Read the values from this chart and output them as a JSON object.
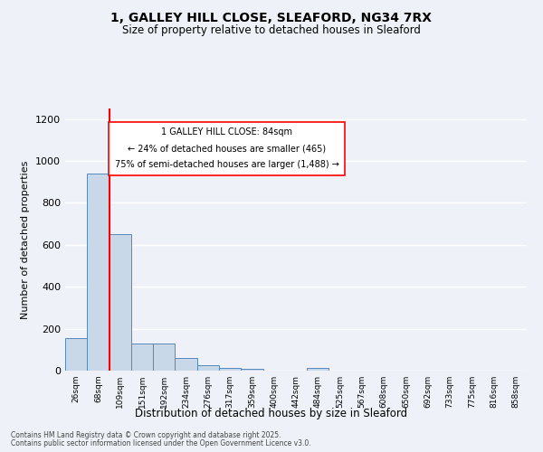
{
  "title_line1": "1, GALLEY HILL CLOSE, SLEAFORD, NG34 7RX",
  "title_line2": "Size of property relative to detached houses in Sleaford",
  "xlabel": "Distribution of detached houses by size in Sleaford",
  "ylabel": "Number of detached properties",
  "bin_labels": [
    "26sqm",
    "68sqm",
    "109sqm",
    "151sqm",
    "192sqm",
    "234sqm",
    "276sqm",
    "317sqm",
    "359sqm",
    "400sqm",
    "442sqm",
    "484sqm",
    "525sqm",
    "567sqm",
    "608sqm",
    "650sqm",
    "692sqm",
    "733sqm",
    "775sqm",
    "816sqm",
    "858sqm"
  ],
  "bar_heights": [
    155,
    940,
    650,
    130,
    130,
    60,
    25,
    15,
    10,
    0,
    0,
    15,
    0,
    0,
    0,
    0,
    0,
    0,
    0,
    0,
    0
  ],
  "bar_color": "#c8d8e8",
  "bar_edge_color": "#5588bb",
  "red_line_x": 1.5,
  "annotation_title": "1 GALLEY HILL CLOSE: 84sqm",
  "annotation_line2": "← 24% of detached houses are smaller (465)",
  "annotation_line3": "75% of semi-detached houses are larger (1,488) →",
  "ylim": [
    0,
    1250
  ],
  "yticks": [
    0,
    200,
    400,
    600,
    800,
    1000,
    1200
  ],
  "background_color": "#eef2f8",
  "grid_color": "#ffffff",
  "footnote1": "Contains HM Land Registry data © Crown copyright and database right 2025.",
  "footnote2": "Contains public sector information licensed under the Open Government Licence v3.0."
}
